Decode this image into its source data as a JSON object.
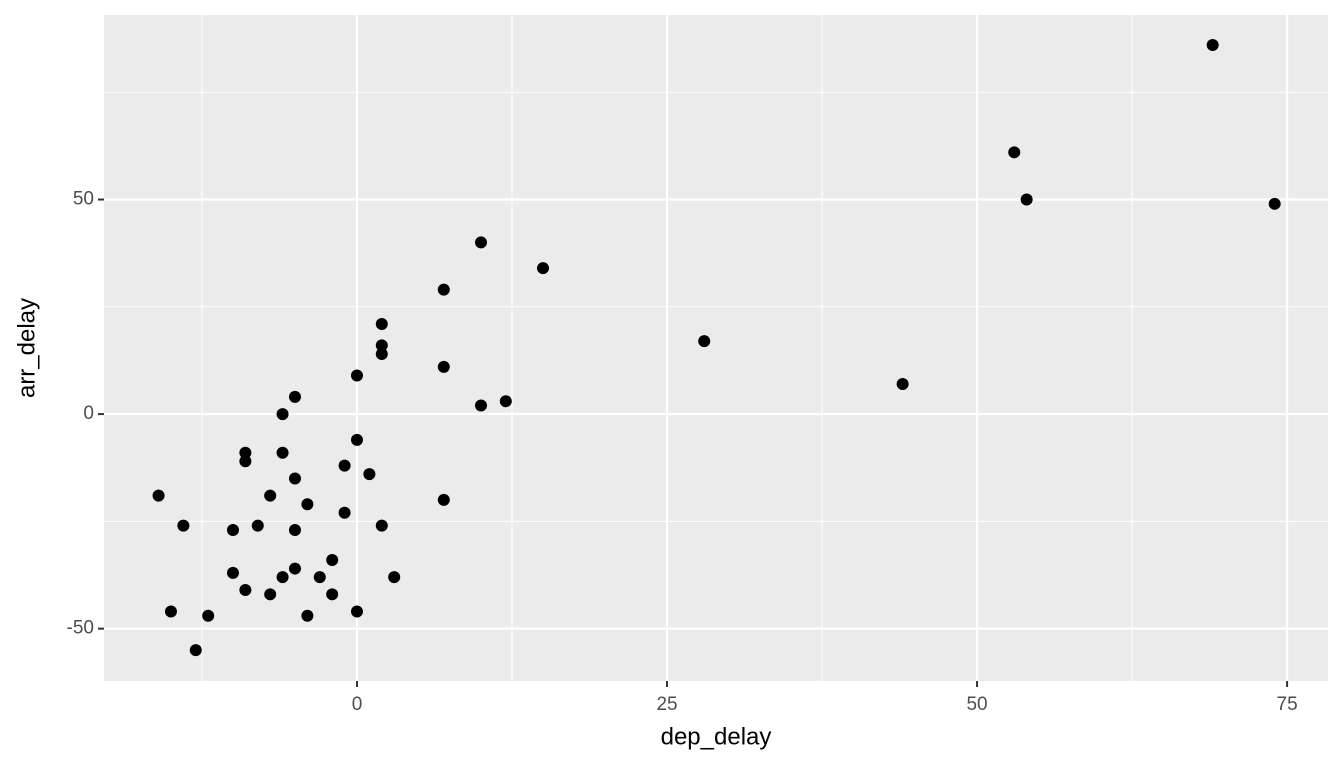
{
  "chart_data": {
    "type": "scatter",
    "x_label": "dep_delay",
    "y_label": "arr_delay",
    "x": [
      69,
      53,
      54,
      74,
      10,
      15,
      7,
      28,
      2,
      2,
      2,
      7,
      0,
      44,
      -5,
      12,
      10,
      -6,
      0,
      -9,
      -6,
      -9,
      -1,
      1,
      -5,
      -16,
      -7,
      7,
      -4,
      -1,
      -14,
      -8,
      2,
      -10,
      -5,
      -2,
      -10,
      -5,
      -6,
      -3,
      3,
      -9,
      -7,
      -2,
      -15,
      0,
      -12,
      -4,
      -13
    ],
    "series": [
      {
        "color": "#000000",
        "values": [
          86,
          61,
          50,
          49,
          40,
          34,
          29,
          17,
          21,
          16,
          14,
          11,
          9,
          7,
          4,
          3,
          2,
          0,
          -6,
          -9,
          -9,
          -11,
          -12,
          -14,
          -15,
          -19,
          -19,
          -20,
          -21,
          -23,
          -26,
          -26,
          -26,
          -27,
          -27,
          -34,
          -37,
          -36,
          -38,
          -38,
          -38,
          -41,
          -42,
          -42,
          -46,
          -46,
          -47,
          -47,
          -55
        ]
      }
    ],
    "xlim": [
      -20.4,
      78.3
    ],
    "ylim": [
      -62.2,
      93
    ],
    "xticks": [
      0,
      25,
      50,
      75
    ],
    "yticks": [
      -50,
      0,
      50
    ],
    "x_minor_grid": [
      -12.5,
      12.5,
      37.5,
      62.5
    ],
    "y_minor_grid": [
      -25,
      25,
      75
    ],
    "grid": true,
    "panel_color": "#ebebeb"
  }
}
